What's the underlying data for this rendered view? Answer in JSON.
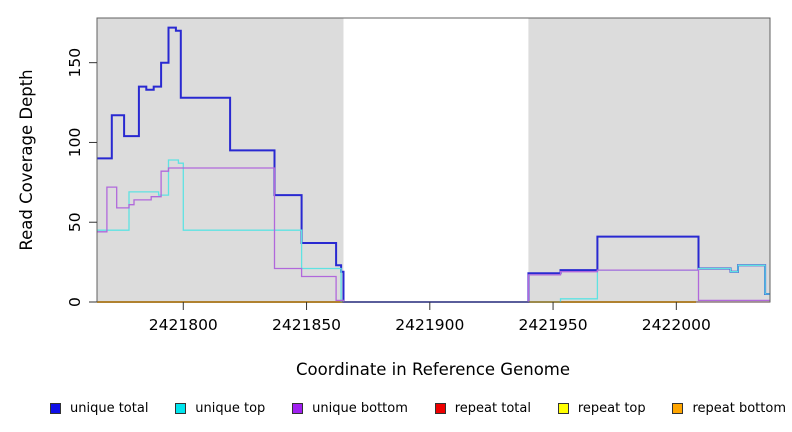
{
  "chart_data": {
    "type": "line",
    "subtype": "step-after",
    "title": "",
    "xlabel": "Coordinate in Reference Genome",
    "ylabel": "Read Coverage Depth",
    "xlim": [
      2421765,
      2422038
    ],
    "ylim": [
      0,
      178
    ],
    "xticks": [
      2421800,
      2421850,
      2421900,
      2421950,
      2422000
    ],
    "yticks": [
      0,
      50,
      100,
      150
    ],
    "grid": false,
    "legend_position": "bottom",
    "plot_background": "#ffffff",
    "shaded_regions": [
      {
        "name": "shaded-left",
        "from": 2421765,
        "to": 2421865,
        "color": "#DCDCDC"
      },
      {
        "name": "unshaded-middle",
        "from": 2421865,
        "to": 2421940,
        "color": "#FFFFFF"
      },
      {
        "name": "shaded-right",
        "from": 2421940,
        "to": 2422038,
        "color": "#DCDCDC"
      }
    ],
    "draw_order": [
      3,
      4,
      5,
      0,
      1,
      2
    ],
    "series": [
      {
        "name": "unique total",
        "slug": "unique-total",
        "color": "#0F0FE8",
        "line_color": "#2929D1",
        "line_width": 2,
        "points": [
          [
            2421765,
            90
          ],
          [
            2421771,
            117
          ],
          [
            2421776,
            104
          ],
          [
            2421782,
            135
          ],
          [
            2421785,
            133
          ],
          [
            2421788,
            135
          ],
          [
            2421791,
            150
          ],
          [
            2421794,
            172
          ],
          [
            2421797,
            170
          ],
          [
            2421799,
            128
          ],
          [
            2421819,
            95
          ],
          [
            2421837,
            67
          ],
          [
            2421848,
            37
          ],
          [
            2421862,
            23
          ],
          [
            2421864,
            19
          ],
          [
            2421865,
            0
          ],
          [
            2421940,
            18
          ],
          [
            2421953,
            20
          ],
          [
            2421968,
            41
          ],
          [
            2422009,
            21
          ],
          [
            2422022,
            19
          ],
          [
            2422025,
            23
          ],
          [
            2422036,
            5
          ],
          [
            2422038,
            5
          ]
        ]
      },
      {
        "name": "unique top",
        "slug": "unique-top",
        "color": "#00E5EE",
        "line_color": "#5FE2E2",
        "line_width": 1.3,
        "points": [
          [
            2421765,
            45
          ],
          [
            2421778,
            69
          ],
          [
            2421790,
            67
          ],
          [
            2421794,
            89
          ],
          [
            2421798,
            87
          ],
          [
            2421800,
            45
          ],
          [
            2421848,
            21
          ],
          [
            2421864,
            0
          ],
          [
            2421953,
            2
          ],
          [
            2421968,
            20
          ],
          [
            2422009,
            21
          ],
          [
            2422022,
            19
          ],
          [
            2422025,
            23
          ],
          [
            2422036,
            5
          ],
          [
            2422038,
            5
          ]
        ]
      },
      {
        "name": "unique bottom",
        "slug": "unique-bottom",
        "color": "#A020F0",
        "line_color": "#B168DB",
        "line_width": 1.3,
        "points": [
          [
            2421765,
            44
          ],
          [
            2421769,
            72
          ],
          [
            2421773,
            59
          ],
          [
            2421778,
            61
          ],
          [
            2421780,
            64
          ],
          [
            2421787,
            66
          ],
          [
            2421791,
            82
          ],
          [
            2421794,
            84
          ],
          [
            2421837,
            21
          ],
          [
            2421848,
            16
          ],
          [
            2421862,
            1
          ],
          [
            2421865,
            0
          ],
          [
            2421940,
            17
          ],
          [
            2421953,
            19
          ],
          [
            2421968,
            20
          ],
          [
            2422009,
            1
          ],
          [
            2422038,
            1
          ]
        ]
      },
      {
        "name": "repeat total",
        "slug": "repeat-total",
        "color": "#EE0000",
        "line_color": "#E05C86",
        "line_width": 1.3,
        "points": [
          [
            2421765,
            0
          ],
          [
            2422038,
            0
          ]
        ]
      },
      {
        "name": "repeat top",
        "slug": "repeat-top",
        "color": "#FFFF00",
        "line_color": "#FFFF00",
        "line_width": 1.3,
        "points": [
          [
            2421765,
            0
          ],
          [
            2422008,
            0
          ]
        ]
      },
      {
        "name": "repeat bottom",
        "slug": "repeat-bottom",
        "color": "#FFA500",
        "line_color": "#FFA500",
        "line_width": 2,
        "points": [
          [
            2421765,
            0
          ],
          [
            2422008,
            0
          ]
        ]
      }
    ]
  }
}
